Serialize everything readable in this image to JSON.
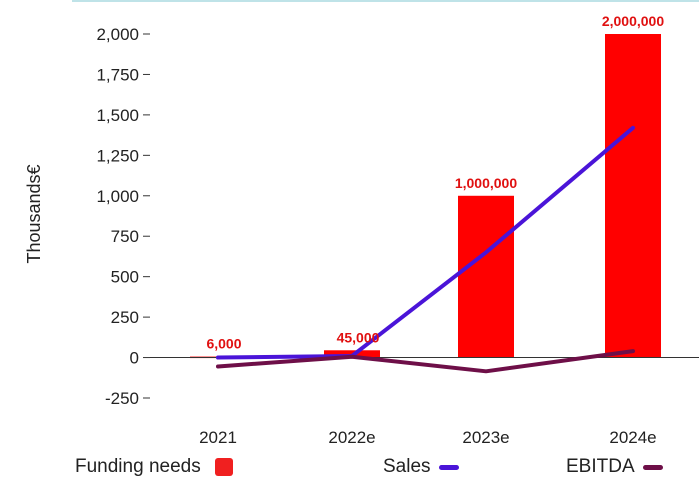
{
  "chart_data": {
    "type": "bar",
    "categories": [
      "2021",
      "2022e",
      "2023e",
      "2024e"
    ],
    "ylabel": "Thousands€",
    "ylim": [
      -250,
      2000
    ],
    "yticks": [
      "2,000",
      "1,750",
      "1,500",
      "1,250",
      "1,000",
      "750",
      "500",
      "250",
      "0",
      "-250"
    ],
    "ytick_values": [
      2000,
      1750,
      1500,
      1250,
      1000,
      750,
      500,
      250,
      0,
      -250
    ],
    "bars": {
      "name": "Funding needs",
      "values": [
        6,
        45,
        1000,
        2000
      ],
      "labels": [
        "6,000",
        "45,000",
        "1,000,000",
        "2,000,000"
      ],
      "color": "#ff0000"
    },
    "lines": [
      {
        "name": "Sales",
        "values": [
          0,
          10,
          650,
          1420
        ],
        "color": "#4a14d8"
      },
      {
        "name": "EBITDA",
        "values": [
          -55,
          5,
          -85,
          40
        ],
        "color": "#6e0f48"
      }
    ],
    "grid": false,
    "legend_position": "bottom"
  },
  "legend": {
    "funding": "Funding needs",
    "sales": "Sales",
    "ebitda": "EBITDA"
  },
  "colors": {
    "bar": "#ff0000",
    "sales": "#4a14d8",
    "ebitda": "#6e0f48",
    "label": "#e01010",
    "top_rule": "#bfe3e8"
  }
}
